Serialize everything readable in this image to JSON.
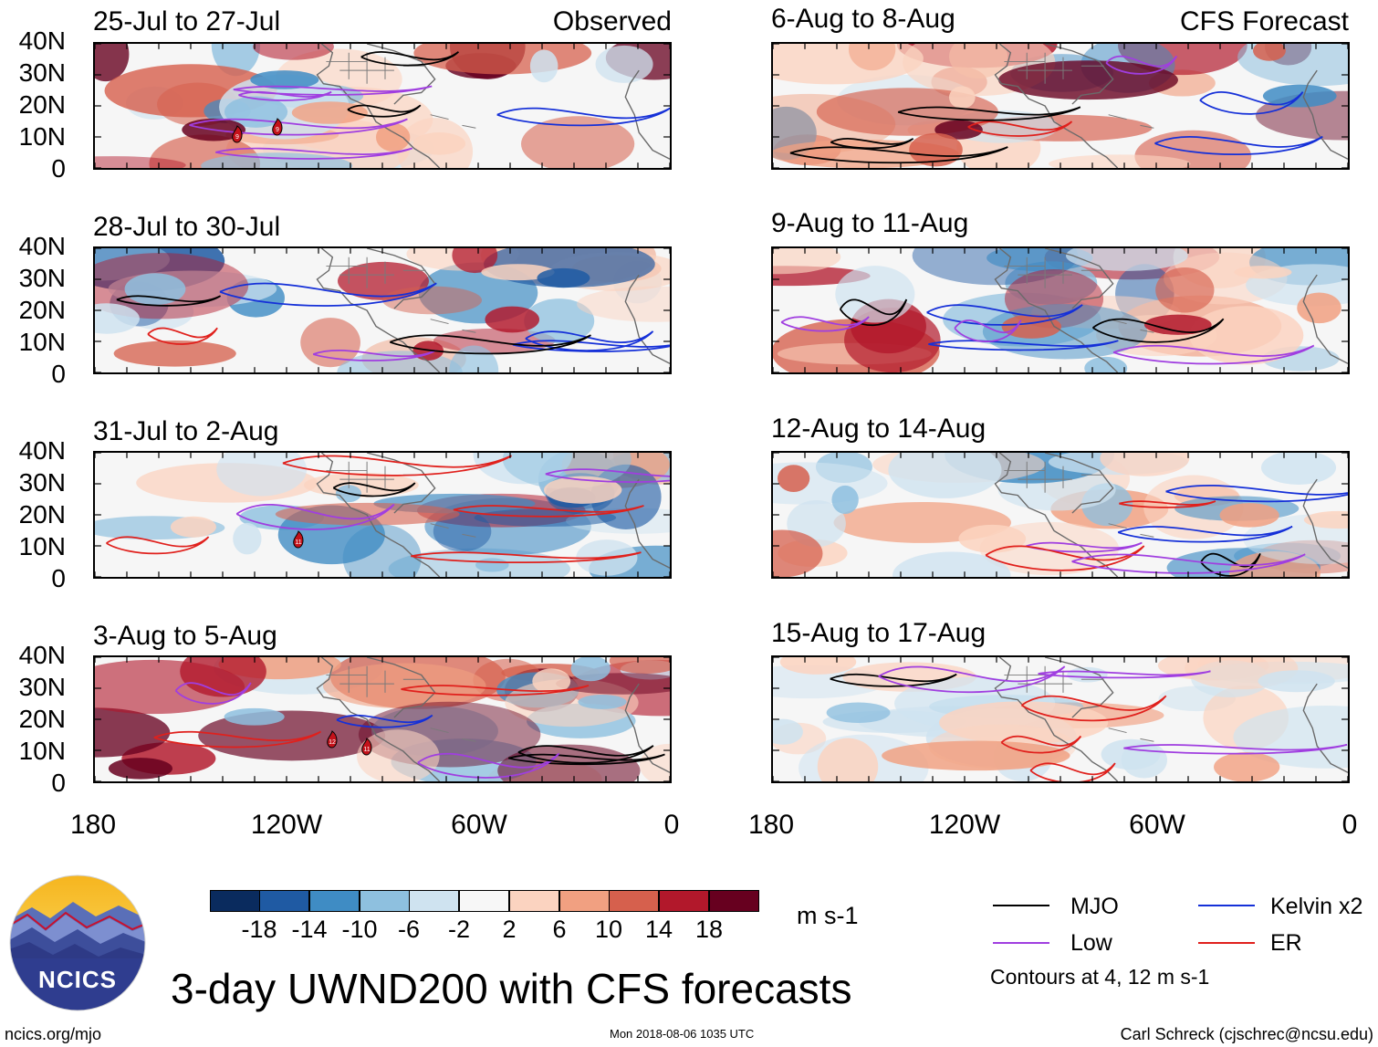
{
  "observed_label": "Observed",
  "forecast_label": "CFS Forecast",
  "lat_labels": [
    "40N",
    "30N",
    "20N",
    "10N",
    "0"
  ],
  "lon_labels": [
    "180",
    "120W",
    "60W",
    "0"
  ],
  "panels": [
    {
      "title": "25-Jul to 27-Jul",
      "type": "observed",
      "storms": [
        "9",
        "9"
      ]
    },
    {
      "title": "28-Jul to 30-Jul",
      "type": "observed",
      "storms": []
    },
    {
      "title": "31-Jul to 2-Aug",
      "type": "observed",
      "storms": [
        "11"
      ]
    },
    {
      "title": "3-Aug to 5-Aug",
      "type": "observed",
      "storms": [
        "12",
        "11"
      ]
    },
    {
      "title": "6-Aug to 8-Aug",
      "type": "forecast",
      "storms": []
    },
    {
      "title": "9-Aug to 11-Aug",
      "type": "forecast",
      "storms": []
    },
    {
      "title": "12-Aug to 14-Aug",
      "type": "forecast",
      "storms": []
    },
    {
      "title": "15-Aug to 17-Aug",
      "type": "forecast",
      "storms": []
    }
  ],
  "colorbar": {
    "colors": [
      "#0a2b5e",
      "#1f5aa3",
      "#3f8cc4",
      "#8ec0df",
      "#cfe3f0",
      "#f7f7f7",
      "#fbd3c0",
      "#f1a081",
      "#d6604d",
      "#b2182b",
      "#67001f"
    ],
    "labels": [
      "-18",
      "-14",
      "-10",
      "-6",
      "-2",
      "2",
      "6",
      "10",
      "14",
      "18"
    ],
    "units": "m s-1"
  },
  "legend": {
    "items": [
      {
        "label": "MJO",
        "color": "#000000"
      },
      {
        "label": "Kelvin x2",
        "color": "#1530d8"
      },
      {
        "label": "Low",
        "color": "#a03ee0"
      },
      {
        "label": "ER",
        "color": "#e0201c"
      }
    ],
    "note": "Contours at 4, 12 m s-1"
  },
  "logo_text": "NCICS",
  "main_title": "3-day UWND200 with CFS forecasts",
  "footer": {
    "left": "ncics.org/mjo",
    "center": "Mon 2018-08-06 1035 UTC",
    "right": "Carl Schreck (cjschrec@ncsu.edu)"
  }
}
